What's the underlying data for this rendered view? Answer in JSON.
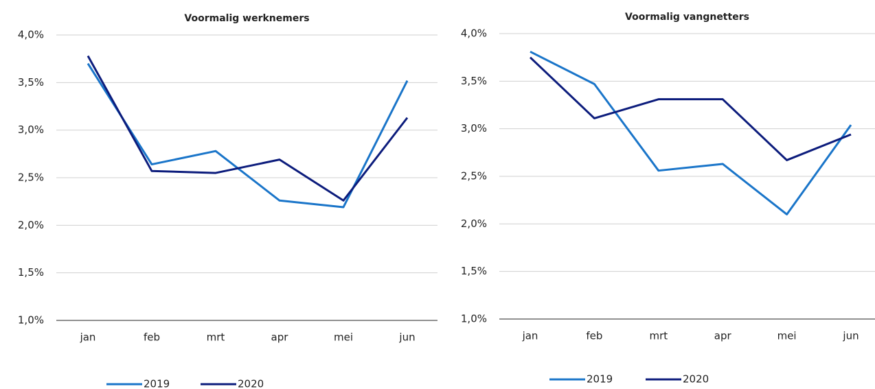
{
  "chart_data": [
    {
      "type": "line",
      "title": "Voormalig werknemers",
      "categories": [
        "jan",
        "feb",
        "mrt",
        "apr",
        "mei",
        "jun"
      ],
      "series": [
        {
          "name": "2019",
          "color": "#1a75c9",
          "values": [
            3.7,
            2.64,
            2.78,
            2.26,
            2.19,
            3.52
          ]
        },
        {
          "name": "2020",
          "color": "#0c1c7c",
          "values": [
            3.78,
            2.57,
            2.55,
            2.69,
            2.26,
            3.13
          ]
        }
      ],
      "ylim": [
        1.0,
        4.0
      ],
      "yticks": [
        {
          "value": 1.0,
          "label": "1,0%"
        },
        {
          "value": 1.5,
          "label": "1,5%"
        },
        {
          "value": 2.0,
          "label": "2,0%"
        },
        {
          "value": 2.5,
          "label": "2,5%"
        },
        {
          "value": 3.0,
          "label": "3,0%"
        },
        {
          "value": 3.5,
          "label": "3,5%"
        },
        {
          "value": 4.0,
          "label": "4,0%"
        }
      ],
      "grid": true,
      "legend": "bottom"
    },
    {
      "type": "line",
      "title": "Voormalig vangnetters",
      "categories": [
        "jan",
        "feb",
        "mrt",
        "apr",
        "mei",
        "jun"
      ],
      "series": [
        {
          "name": "2019",
          "color": "#1a75c9",
          "values": [
            3.81,
            3.47,
            2.56,
            2.63,
            2.1,
            3.04
          ]
        },
        {
          "name": "2020",
          "color": "#0c1c7c",
          "values": [
            3.75,
            3.11,
            3.31,
            3.31,
            2.67,
            2.94
          ]
        }
      ],
      "ylim": [
        1.0,
        4.0
      ],
      "yticks": [
        {
          "value": 1.0,
          "label": "1,0%"
        },
        {
          "value": 1.5,
          "label": "1,5%"
        },
        {
          "value": 2.0,
          "label": "2,0%"
        },
        {
          "value": 2.5,
          "label": "2,5%"
        },
        {
          "value": 3.0,
          "label": "3,0%"
        },
        {
          "value": 3.5,
          "label": "3,5%"
        },
        {
          "value": 4.0,
          "label": "4,0%"
        }
      ],
      "grid": true,
      "legend": "bottom"
    }
  ]
}
